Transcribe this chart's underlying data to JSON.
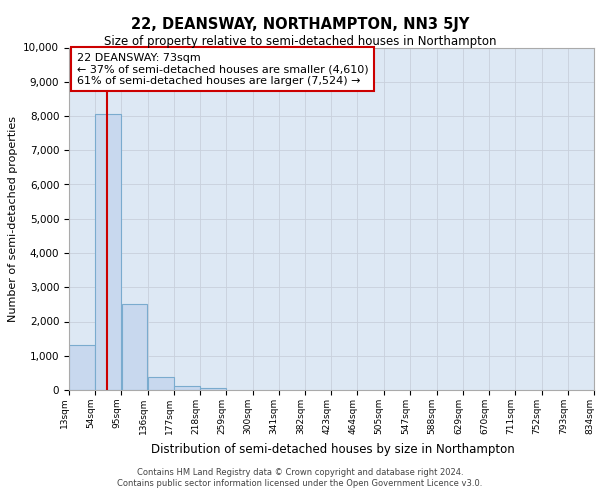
{
  "title": "22, DEANSWAY, NORTHAMPTON, NN3 5JY",
  "subtitle": "Size of property relative to semi-detached houses in Northampton",
  "xlabel": "Distribution of semi-detached houses by size in Northampton",
  "ylabel": "Number of semi-detached properties",
  "property_label": "22 DEANSWAY: 73sqm",
  "pct_smaller": 37,
  "pct_larger": 61,
  "count_smaller": 4610,
  "count_larger": 7524,
  "bin_labels": [
    "13sqm",
    "54sqm",
    "95sqm",
    "136sqm",
    "177sqm",
    "218sqm",
    "259sqm",
    "300sqm",
    "341sqm",
    "382sqm",
    "423sqm",
    "464sqm",
    "505sqm",
    "547sqm",
    "588sqm",
    "629sqm",
    "670sqm",
    "711sqm",
    "752sqm",
    "793sqm",
    "834sqm"
  ],
  "bin_edges": [
    13,
    54,
    95,
    136,
    177,
    218,
    259,
    300,
    341,
    382,
    423,
    464,
    505,
    547,
    588,
    629,
    670,
    711,
    752,
    793,
    834
  ],
  "bar_values": [
    1300,
    8050,
    2520,
    380,
    130,
    60,
    0,
    0,
    0,
    0,
    0,
    0,
    0,
    0,
    0,
    0,
    0,
    0,
    0,
    0
  ],
  "bar_color": "#c8d8ee",
  "bar_edge_color": "#7aabce",
  "red_line_x": 73,
  "annotation_box_color": "#ffffff",
  "annotation_box_edge": "#cc0000",
  "ylim": [
    0,
    10000
  ],
  "yticks": [
    0,
    1000,
    2000,
    3000,
    4000,
    5000,
    6000,
    7000,
    8000,
    9000,
    10000
  ],
  "grid_color": "#c8d0dc",
  "bg_color": "#dde8f4",
  "footer1": "Contains HM Land Registry data © Crown copyright and database right 2024.",
  "footer2": "Contains public sector information licensed under the Open Government Licence v3.0."
}
